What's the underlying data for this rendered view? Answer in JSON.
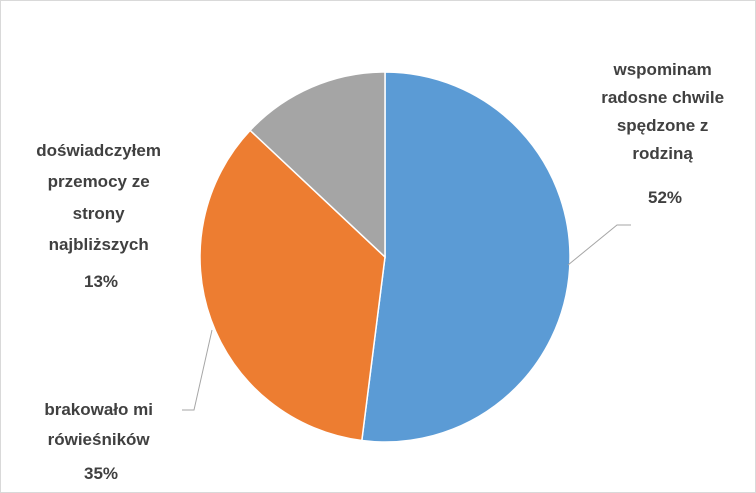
{
  "chart_data": {
    "type": "pie",
    "title": "",
    "slices": [
      {
        "label": "wspominam radosne chwile spędzone z rodziną",
        "value": 52,
        "value_label": "52%",
        "color": "#5b9bd5"
      },
      {
        "label": "brakowało mi rówieśników",
        "value": 35,
        "value_label": "35%",
        "color": "#ed7d31"
      },
      {
        "label": "doświadczyłem przemocy ze strony najbliższych",
        "value": 13,
        "value_label": "13%",
        "color": "#a5a5a5"
      }
    ],
    "start_angle_deg": 0,
    "direction": "clockwise",
    "legend": "none",
    "data_labels": "outside with leader lines",
    "label_lines": [
      [
        "wspominam",
        "radosne chwile",
        "spędzone z",
        "rodziną",
        "52%"
      ],
      [
        "brakowało mi",
        "rówieśników",
        "35%"
      ],
      [
        "doświadczyłem",
        "przemocy ze",
        "strony",
        "najbliższych",
        "13%"
      ]
    ]
  }
}
